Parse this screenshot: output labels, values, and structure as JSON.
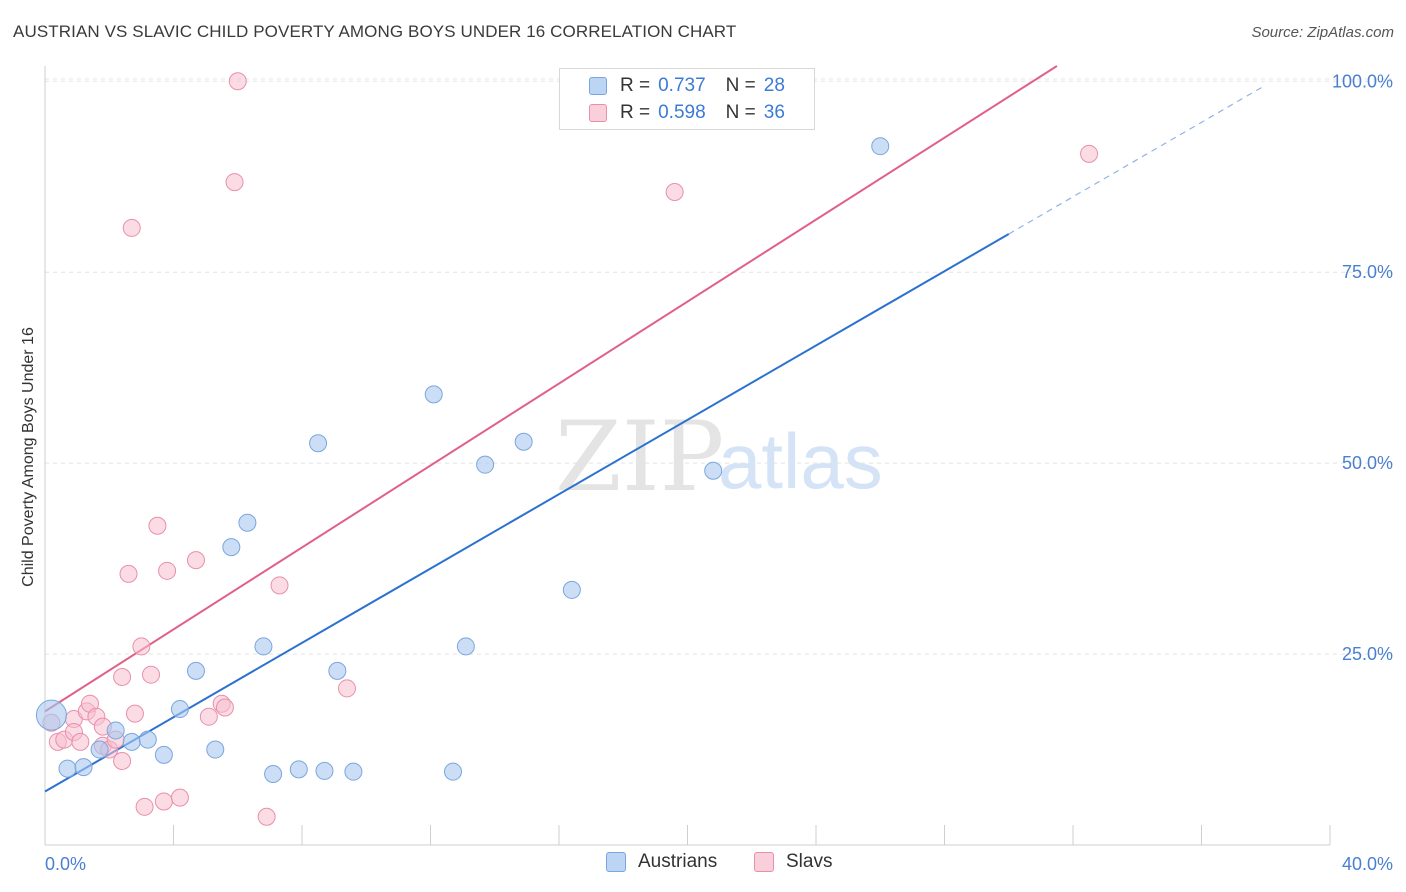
{
  "header": {
    "title": "AUSTRIAN VS SLAVIC CHILD POVERTY AMONG BOYS UNDER 16 CORRELATION CHART",
    "source": "Source: ZipAtlas.com"
  },
  "legend": {
    "rows": [
      {
        "r_label": "R =",
        "r_value": "0.737",
        "n_label": "N =",
        "n_value": "28"
      },
      {
        "r_label": "R =",
        "r_value": "0.598",
        "n_label": "N =",
        "n_value": "36"
      }
    ]
  },
  "watermark": {
    "zip": "ZIP",
    "atlas": "atlas"
  },
  "colors": {
    "austrians_fill": "#a8c8f0",
    "austrians_stroke": "#7aa6dd",
    "austrians_line": "#2b72d0",
    "slavs_fill": "#f7bfd0",
    "slavs_stroke": "#e98fab",
    "slavs_line": "#e06088",
    "grid": "#e4e4e4",
    "axis_text": "#4a7fd0"
  },
  "chart_data": {
    "type": "scatter",
    "title": "AUSTRIAN VS SLAVIC CHILD POVERTY AMONG BOYS UNDER 16 CORRELATION CHART",
    "xlabel": "",
    "ylabel": "Child Poverty Among Boys Under 16",
    "xlim": [
      0,
      40
    ],
    "ylim": [
      0,
      102
    ],
    "x_tick_labels": [
      "0.0%",
      "40.0%"
    ],
    "y_ticks": [
      25,
      50,
      75,
      100
    ],
    "y_tick_labels": [
      "25.0%",
      "50.0%",
      "75.0%",
      "100.0%"
    ],
    "grid": true,
    "legend_position": "top-center",
    "series": [
      {
        "name": "Austrians",
        "r": 0.737,
        "n": 28,
        "trend": {
          "x0": 0,
          "y0": 7.0,
          "x1": 30,
          "y1": 80.0,
          "dashed_to_x": 38,
          "dashed_to_y": 99.5
        },
        "points": [
          [
            0.2,
            17.0
          ],
          [
            0.7,
            10.0
          ],
          [
            1.2,
            10.2
          ],
          [
            1.7,
            12.5
          ],
          [
            2.2,
            15.0
          ],
          [
            2.7,
            13.5
          ],
          [
            3.2,
            13.8
          ],
          [
            3.7,
            11.8
          ],
          [
            4.2,
            17.8
          ],
          [
            4.7,
            22.8
          ],
          [
            5.3,
            12.5
          ],
          [
            5.8,
            39.0
          ],
          [
            6.3,
            42.2
          ],
          [
            6.8,
            26.0
          ],
          [
            7.1,
            9.3
          ],
          [
            7.9,
            9.9
          ],
          [
            8.5,
            52.6
          ],
          [
            8.7,
            9.7
          ],
          [
            9.1,
            22.8
          ],
          [
            9.6,
            9.6
          ],
          [
            12.1,
            59.0
          ],
          [
            12.7,
            9.6
          ],
          [
            13.1,
            26.0
          ],
          [
            13.7,
            49.8
          ],
          [
            14.9,
            52.8
          ],
          [
            16.4,
            33.4
          ],
          [
            20.8,
            49.0
          ],
          [
            26.0,
            91.5
          ]
        ]
      },
      {
        "name": "Slavs",
        "r": 0.598,
        "n": 36,
        "trend": {
          "x0": 0,
          "y0": 17.5,
          "x1": 31.5,
          "y1": 102.0
        },
        "points": [
          [
            0.2,
            16.0
          ],
          [
            0.4,
            13.5
          ],
          [
            0.6,
            13.8
          ],
          [
            0.9,
            16.5
          ],
          [
            0.9,
            14.8
          ],
          [
            1.1,
            13.5
          ],
          [
            1.3,
            17.5
          ],
          [
            1.4,
            18.5
          ],
          [
            1.6,
            16.8
          ],
          [
            1.8,
            13.0
          ],
          [
            1.8,
            15.5
          ],
          [
            2.0,
            12.5
          ],
          [
            2.2,
            13.8
          ],
          [
            2.4,
            22.0
          ],
          [
            2.4,
            11.0
          ],
          [
            2.6,
            35.5
          ],
          [
            2.7,
            80.8
          ],
          [
            2.8,
            17.2
          ],
          [
            3.0,
            26.0
          ],
          [
            3.1,
            5.0
          ],
          [
            3.3,
            22.3
          ],
          [
            3.5,
            41.8
          ],
          [
            3.7,
            5.7
          ],
          [
            3.8,
            35.9
          ],
          [
            4.2,
            6.2
          ],
          [
            4.7,
            37.3
          ],
          [
            5.1,
            16.8
          ],
          [
            5.5,
            18.5
          ],
          [
            5.6,
            18.0
          ],
          [
            5.9,
            86.8
          ],
          [
            6.0,
            100.0
          ],
          [
            6.9,
            3.7
          ],
          [
            7.3,
            34.0
          ],
          [
            9.4,
            20.5
          ],
          [
            19.6,
            85.5
          ],
          [
            32.5,
            90.5
          ]
        ]
      }
    ]
  },
  "bottom_legend": {
    "items": [
      "Austrians",
      "Slavs"
    ]
  }
}
